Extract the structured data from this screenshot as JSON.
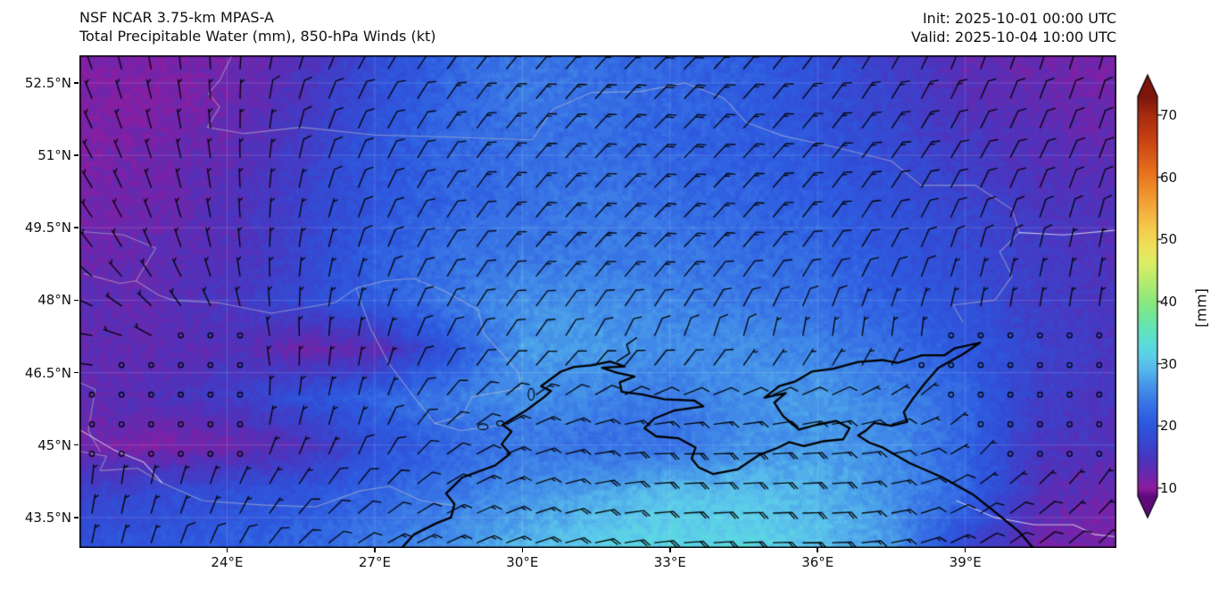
{
  "header": {
    "model": "NSF NCAR 3.75-km MPAS-A",
    "field": "Total Precipitable Water (mm), 850-hPa Winds (kt)",
    "init": "Init: 2025-10-01 00:00 UTC",
    "valid": "Valid: 2025-10-04 10:00 UTC"
  },
  "chart_data": {
    "type": "heatmap",
    "title": "Total Precipitable Water (mm), 850-hPa Winds (kt)",
    "subtitle": "NSF NCAR 3.75-km MPAS-A",
    "x_axis": {
      "ticks": [
        24,
        27,
        30,
        33,
        36,
        39
      ],
      "tick_labels": [
        "24°E",
        "27°E",
        "30°E",
        "33°E",
        "36°E",
        "39°E"
      ],
      "range": [
        21.0,
        42.07
      ]
    },
    "y_axis": {
      "ticks": [
        52.5,
        51,
        49.5,
        48,
        46.5,
        45,
        43.5
      ],
      "tick_labels": [
        "52.5°N",
        "51°N",
        "49.5°N",
        "48°N",
        "46.5°N",
        "45°N",
        "43.5°N"
      ],
      "range": [
        42.87,
        53.07
      ]
    },
    "grid": "faint-white-graticule",
    "colorbar": {
      "label": "[mm]",
      "ticks": [
        10,
        20,
        30,
        40,
        50,
        60,
        70
      ],
      "tick_labels": [
        "10",
        "20",
        "30",
        "40",
        "50",
        "60",
        "70"
      ],
      "range": [
        8.7,
        73
      ],
      "extend": "both",
      "stops": [
        [
          6,
          "#5f0a7a"
        ],
        [
          8,
          "#7a1190"
        ],
        [
          10,
          "#8f1c9e"
        ],
        [
          11,
          "#7d22a6"
        ],
        [
          13,
          "#5e2cb2"
        ],
        [
          15,
          "#4936c0"
        ],
        [
          17,
          "#3a44cd"
        ],
        [
          19,
          "#3050d8"
        ],
        [
          21,
          "#2e5ce0"
        ],
        [
          24,
          "#3a78e6"
        ],
        [
          27,
          "#489ae9"
        ],
        [
          29,
          "#55b6ea"
        ],
        [
          31,
          "#5cccea"
        ],
        [
          33,
          "#5adcdc"
        ],
        [
          35,
          "#60e2c0"
        ],
        [
          37,
          "#6ce6a4"
        ],
        [
          40,
          "#8ce87d"
        ],
        [
          43,
          "#b2ec70"
        ],
        [
          46,
          "#daee66"
        ],
        [
          49,
          "#f0e058"
        ],
        [
          52,
          "#f5c84b"
        ],
        [
          55,
          "#f3aa3c"
        ],
        [
          58,
          "#ef8c2a"
        ],
        [
          61,
          "#e56f1e"
        ],
        [
          64,
          "#d55317"
        ],
        [
          67,
          "#c03b11"
        ],
        [
          70,
          "#a62c10"
        ],
        [
          73,
          "#7c150c"
        ]
      ]
    },
    "tpw": {
      "units": "mm",
      "lons": [
        21,
        22.5,
        24,
        25.5,
        27,
        28.5,
        30,
        31.5,
        33,
        34.5,
        36,
        37.5,
        39,
        40.5,
        42
      ],
      "lats": [
        53,
        52,
        51,
        50,
        49,
        48,
        47,
        46,
        45,
        44,
        43
      ],
      "values_mm": [
        [
          11,
          11,
          12,
          14,
          18,
          22,
          24,
          23,
          22,
          21,
          19,
          16,
          13,
          12,
          11
        ],
        [
          11,
          11,
          12,
          15,
          19,
          22,
          24,
          23,
          22,
          21,
          19,
          17,
          14,
          13,
          12
        ],
        [
          11,
          12,
          13,
          16,
          20,
          22,
          23,
          23,
          22,
          21,
          20,
          18,
          16,
          14,
          13
        ],
        [
          12,
          12,
          14,
          17,
          20,
          22,
          23,
          24,
          23,
          22,
          21,
          19,
          17,
          15,
          14
        ],
        [
          12,
          13,
          14,
          17,
          21,
          23,
          24,
          24,
          24,
          23,
          22,
          20,
          18,
          16,
          14
        ],
        [
          13,
          13,
          15,
          18,
          21,
          24,
          26,
          26,
          25,
          24,
          23,
          21,
          19,
          16,
          15
        ],
        [
          13,
          13,
          14,
          12,
          13,
          20,
          27,
          27,
          26,
          26,
          25,
          23,
          20,
          17,
          15
        ],
        [
          13,
          14,
          16,
          19,
          22,
          24,
          26,
          25,
          24,
          26,
          27,
          25,
          22,
          16,
          15
        ],
        [
          12,
          11,
          12,
          14,
          19,
          22,
          24,
          23,
          23,
          26,
          27,
          26,
          22,
          15,
          14
        ],
        [
          17,
          18,
          19,
          20,
          22,
          24,
          26,
          28,
          30,
          30,
          29,
          26,
          22,
          14,
          12
        ],
        [
          19,
          20,
          21,
          22,
          24,
          26,
          29,
          31,
          32,
          32,
          30,
          27,
          18,
          12,
          11
        ]
      ]
    },
    "winds": {
      "units": "kt",
      "barb_spacing_px": 33.2,
      "lons": [
        21,
        24,
        27,
        30,
        33,
        36,
        39,
        42
      ],
      "lats": [
        53,
        51,
        49,
        47,
        45,
        43
      ],
      "dir_from_deg": [
        [
          340,
          0,
          30,
          40,
          45,
          35,
          20,
          15
        ],
        [
          330,
          355,
          25,
          40,
          45,
          40,
          30,
          20
        ],
        [
          320,
          350,
          20,
          40,
          45,
          35,
          15,
          10
        ],
        [
          270,
          330,
          10,
          35,
          15,
          0,
          0,
          0
        ],
        [
          350,
          10,
          20,
          70,
          90,
          85,
          40,
          0
        ],
        [
          10,
          25,
          60,
          70,
          85,
          90,
          60,
          45
        ]
      ],
      "speed_kt": [
        [
          8,
          8,
          12,
          16,
          18,
          15,
          13,
          12
        ],
        [
          6,
          6,
          10,
          15,
          18,
          15,
          12,
          10
        ],
        [
          5,
          5,
          8,
          13,
          15,
          12,
          8,
          7
        ],
        [
          5,
          3,
          6,
          12,
          8,
          6,
          2,
          2
        ],
        [
          2,
          2,
          8,
          15,
          19,
          19,
          3,
          2
        ],
        [
          7,
          8,
          12,
          18,
          20,
          20,
          12,
          8
        ]
      ]
    },
    "geo": {
      "coast": [
        [
          27.55,
          42.87
        ],
        [
          27.8,
          43.15
        ],
        [
          28.25,
          43.38
        ],
        [
          28.55,
          43.5
        ],
        [
          28.62,
          43.78
        ],
        [
          28.45,
          44.0
        ],
        [
          28.78,
          44.33
        ],
        [
          29.45,
          44.58
        ],
        [
          29.75,
          44.82
        ],
        [
          29.58,
          45.02
        ],
        [
          29.78,
          45.28
        ],
        [
          29.6,
          45.42
        ],
        [
          30.08,
          45.72
        ],
        [
          30.45,
          46.0
        ],
        [
          30.58,
          46.12
        ],
        [
          30.38,
          46.22
        ],
        [
          30.78,
          46.52
        ],
        [
          31.05,
          46.62
        ],
        [
          31.4,
          46.65
        ],
        [
          31.78,
          46.73
        ],
        [
          32.08,
          46.63
        ],
        [
          31.62,
          46.6
        ],
        [
          31.92,
          46.5
        ],
        [
          32.28,
          46.42
        ],
        [
          31.98,
          46.3
        ],
        [
          32.02,
          46.1
        ],
        [
          32.42,
          46.05
        ],
        [
          32.88,
          45.95
        ],
        [
          33.5,
          45.92
        ],
        [
          33.68,
          45.8
        ],
        [
          33.1,
          45.72
        ],
        [
          32.68,
          45.55
        ],
        [
          32.48,
          45.35
        ],
        [
          32.72,
          45.18
        ],
        [
          33.18,
          45.14
        ],
        [
          33.52,
          44.95
        ],
        [
          33.44,
          44.72
        ],
        [
          33.58,
          44.54
        ],
        [
          33.88,
          44.4
        ],
        [
          34.38,
          44.5
        ],
        [
          34.82,
          44.8
        ],
        [
          35.18,
          44.94
        ],
        [
          35.42,
          45.06
        ],
        [
          35.72,
          44.98
        ],
        [
          36.12,
          45.08
        ],
        [
          36.52,
          45.12
        ],
        [
          36.65,
          45.35
        ],
        [
          36.38,
          45.5
        ],
        [
          35.98,
          45.42
        ],
        [
          35.62,
          45.32
        ],
        [
          35.3,
          45.6
        ],
        [
          35.12,
          45.88
        ],
        [
          35.35,
          46.08
        ],
        [
          34.92,
          45.98
        ],
        [
          35.22,
          46.22
        ],
        [
          35.55,
          46.32
        ],
        [
          35.88,
          46.52
        ],
        [
          36.32,
          46.58
        ],
        [
          36.82,
          46.72
        ],
        [
          37.32,
          46.76
        ],
        [
          37.62,
          46.7
        ],
        [
          38.12,
          46.86
        ],
        [
          38.58,
          46.86
        ],
        [
          38.78,
          47.0
        ],
        [
          39.3,
          47.12
        ],
        [
          38.95,
          46.88
        ],
        [
          38.45,
          46.6
        ],
        [
          38.18,
          46.28
        ],
        [
          37.95,
          45.98
        ],
        [
          37.75,
          45.68
        ],
        [
          37.82,
          45.48
        ],
        [
          37.5,
          45.4
        ],
        [
          37.15,
          45.46
        ],
        [
          36.98,
          45.3
        ],
        [
          36.82,
          45.2
        ],
        [
          37.05,
          45.05
        ],
        [
          37.32,
          44.95
        ],
        [
          37.88,
          44.62
        ],
        [
          38.52,
          44.34
        ],
        [
          39.15,
          43.98
        ],
        [
          39.72,
          43.52
        ],
        [
          40.08,
          43.22
        ],
        [
          40.38,
          42.87
        ]
      ],
      "river": [
        [
          31.92,
          46.73
        ],
        [
          32.18,
          46.9
        ],
        [
          32.12,
          47.08
        ],
        [
          32.32,
          47.22
        ]
      ],
      "lakes": [
        [
          29.2,
          45.38,
          0.1,
          0.06
        ],
        [
          29.55,
          45.45,
          0.07,
          0.05
        ],
        [
          30.18,
          46.05,
          0.06,
          0.12
        ]
      ],
      "borders": [
        [
          [
            24.1,
            53.07
          ],
          [
            23.85,
            52.55
          ],
          [
            23.62,
            52.28
          ],
          [
            23.85,
            52.0
          ],
          [
            23.6,
            51.58
          ],
          [
            24.35,
            51.45
          ],
          [
            25.5,
            51.58
          ],
          [
            27.0,
            51.42
          ],
          [
            28.5,
            51.38
          ],
          [
            30.2,
            51.32
          ],
          [
            30.62,
            51.95
          ],
          [
            31.4,
            52.3
          ],
          [
            32.4,
            52.32
          ],
          [
            33.3,
            52.5
          ],
          [
            34.1,
            52.18
          ],
          [
            34.55,
            51.68
          ],
          [
            35.3,
            51.4
          ],
          [
            36.3,
            51.18
          ],
          [
            37.5,
            50.88
          ],
          [
            38.1,
            50.38
          ],
          [
            39.2,
            50.38
          ],
          [
            39.95,
            49.88
          ],
          [
            40.1,
            49.4
          ],
          [
            39.7,
            49.0
          ],
          [
            39.95,
            48.5
          ],
          [
            39.6,
            48.0
          ],
          [
            38.75,
            47.9
          ],
          [
            38.95,
            47.55
          ]
        ],
        [
          [
            22.9,
            48.0
          ],
          [
            23.8,
            47.95
          ],
          [
            24.9,
            47.73
          ],
          [
            26.2,
            47.95
          ],
          [
            26.62,
            48.25
          ],
          [
            27.2,
            48.4
          ],
          [
            27.78,
            48.45
          ],
          [
            28.4,
            48.2
          ],
          [
            29.1,
            47.8
          ],
          [
            29.22,
            47.3
          ],
          [
            29.58,
            46.9
          ],
          [
            29.92,
            46.5
          ],
          [
            29.98,
            46.18
          ],
          [
            28.98,
            46.0
          ],
          [
            28.78,
            45.6
          ],
          [
            28.22,
            45.45
          ],
          [
            28.75,
            45.3
          ],
          [
            29.6,
            45.42
          ]
        ],
        [
          [
            28.22,
            45.45
          ],
          [
            27.72,
            46.1
          ],
          [
            27.28,
            46.7
          ],
          [
            26.92,
            47.4
          ],
          [
            26.62,
            48.25
          ]
        ],
        [
          [
            21.0,
            44.87
          ],
          [
            21.55,
            44.77
          ],
          [
            21.42,
            44.47
          ],
          [
            22.18,
            44.52
          ],
          [
            22.68,
            44.22
          ],
          [
            23.5,
            43.85
          ],
          [
            24.7,
            43.76
          ],
          [
            25.8,
            43.72
          ],
          [
            26.7,
            44.05
          ],
          [
            27.3,
            44.15
          ],
          [
            27.95,
            43.85
          ],
          [
            28.58,
            43.75
          ]
        ],
        [
          [
            21.0,
            46.3
          ],
          [
            21.32,
            46.15
          ],
          [
            21.18,
            45.3
          ],
          [
            21.42,
            44.87
          ]
        ],
        [
          [
            21.1,
            48.55
          ],
          [
            21.82,
            48.35
          ],
          [
            22.15,
            48.4
          ],
          [
            22.62,
            48.1
          ],
          [
            22.9,
            48.0
          ]
        ],
        [
          [
            22.15,
            48.4
          ],
          [
            22.55,
            49.08
          ],
          [
            21.9,
            49.35
          ],
          [
            21.05,
            49.42
          ]
        ]
      ],
      "white_lines": [
        [
          [
            38.82,
            43.85
          ],
          [
            39.6,
            43.5
          ],
          [
            40.4,
            43.35
          ],
          [
            41.2,
            43.35
          ],
          [
            41.62,
            43.15
          ],
          [
            42.07,
            43.1
          ]
        ],
        [
          [
            21.0,
            45.32
          ],
          [
            21.7,
            44.9
          ],
          [
            22.3,
            44.65
          ],
          [
            22.68,
            44.22
          ]
        ],
        [
          [
            40.1,
            49.4
          ],
          [
            41.0,
            49.35
          ],
          [
            42.07,
            49.45
          ]
        ]
      ]
    }
  }
}
